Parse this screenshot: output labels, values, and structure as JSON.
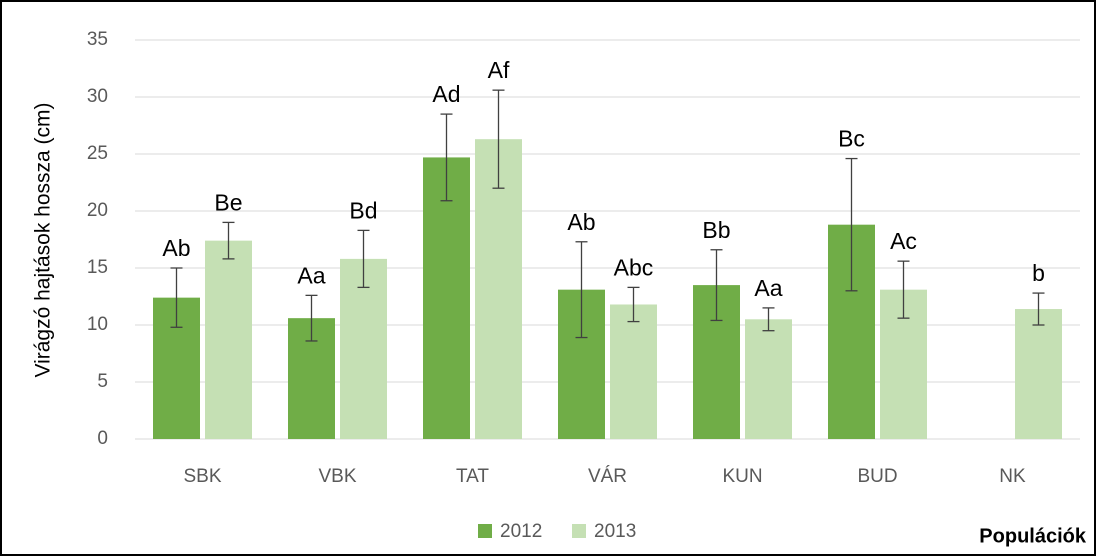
{
  "chart_data": {
    "type": "bar",
    "ylabel": "Virágzó hajtások hossza (cm)",
    "xlabel": "Populációk",
    "categories": [
      "SBK",
      "VBK",
      "TAT",
      "VÁR",
      "KUN",
      "BUD",
      "NK"
    ],
    "series": [
      {
        "name": "2012",
        "color": "#70ad47",
        "values": [
          12.4,
          10.6,
          24.7,
          13.1,
          13.5,
          18.8,
          null
        ],
        "errors": [
          2.6,
          2.0,
          3.8,
          4.2,
          3.1,
          5.8,
          null
        ],
        "labels": [
          "Ab",
          "Aa",
          "Ad",
          "Ab",
          "Bb",
          "Bc",
          null
        ]
      },
      {
        "name": "2013",
        "color": "#c5e0b4",
        "values": [
          17.4,
          15.8,
          26.3,
          11.8,
          10.5,
          13.1,
          11.4
        ],
        "errors": [
          1.6,
          2.5,
          4.3,
          1.5,
          1.0,
          2.5,
          1.4
        ],
        "labels": [
          "Be",
          "Bd",
          "Af",
          "Abc",
          "Aa",
          "Ac",
          "b"
        ]
      }
    ],
    "ylim": [
      0,
      35
    ],
    "yticks": [
      0,
      5,
      10,
      15,
      20,
      25,
      30,
      35
    ],
    "grid": true,
    "legend": "bottom"
  }
}
